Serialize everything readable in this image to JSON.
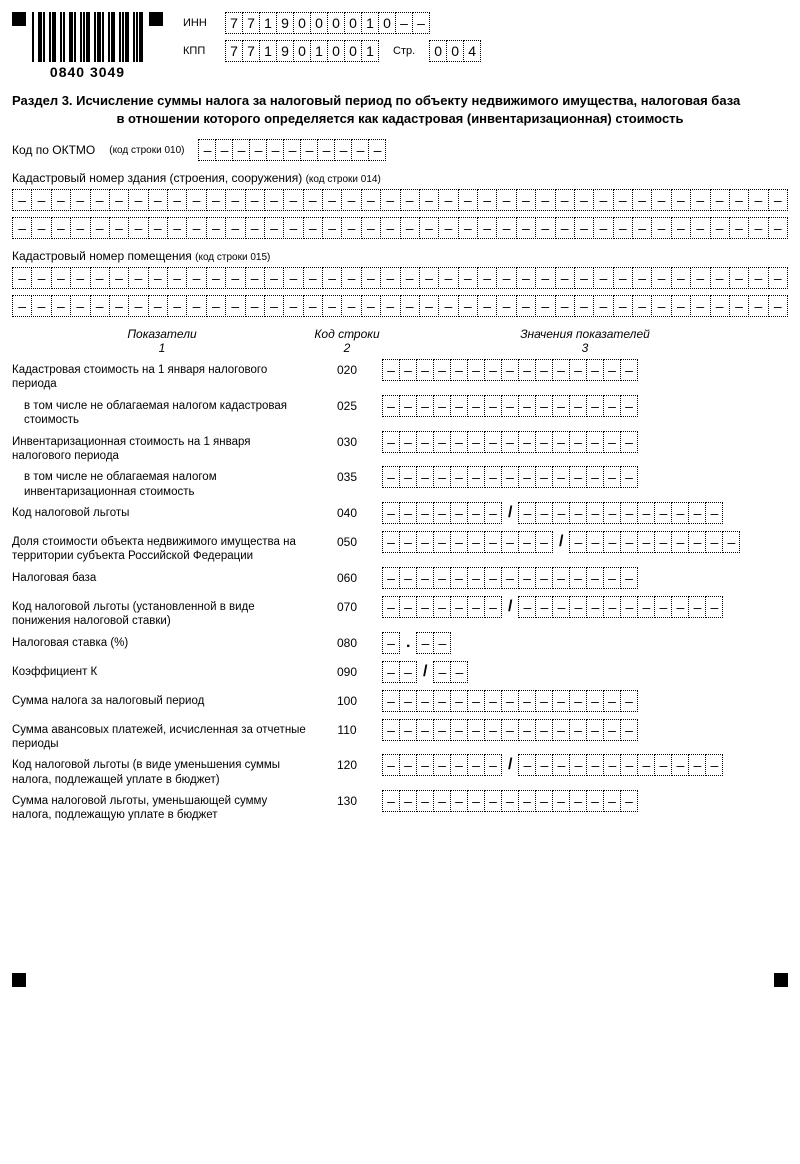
{
  "barcode": "0840 3049",
  "header": {
    "inn_label": "ИНН",
    "inn": [
      "7",
      "7",
      "1",
      "9",
      "0",
      "0",
      "0",
      "0",
      "1",
      "0",
      "–",
      "–"
    ],
    "kpp_label": "КПП",
    "kpp": [
      "7",
      "7",
      "1",
      "9",
      "0",
      "1",
      "0",
      "0",
      "1"
    ],
    "page_label": "Стр.",
    "page": [
      "0",
      "0",
      "4"
    ]
  },
  "section_title_1": "Раздел 3. Исчисление суммы налога за налоговый период по объекту недвижимого имущества, налоговая база",
  "section_title_2": "в отношении которого определяется как кадастровая (инвентаризационная) стоимость",
  "oktmo": {
    "label": "Код по ОКТМО",
    "hint": "(код строки 010)",
    "count": 11
  },
  "line014": {
    "label": "Кадастровый номер здания (строения, сооружения)",
    "hint": "(код строки 014)"
  },
  "line015": {
    "label": "Кадастровый номер помещения",
    "hint": "(код строки 015)"
  },
  "headers": {
    "ind": "Показатели",
    "code": "Код строки",
    "val": "Значения показателей",
    "n1": "1",
    "n2": "2",
    "n3": "3"
  },
  "rows": [
    {
      "ind": "Кадастровая стоимость на 1 января налогового периода",
      "code": "020",
      "cells": 15
    },
    {
      "ind": "в том числе не облагаемая налогом кадастровая стоимость",
      "code": "025",
      "cells": 15,
      "indent": true
    },
    {
      "ind": "Инвентаризационная стоимость на 1 января налогового периода",
      "code": "030",
      "cells": 15
    },
    {
      "ind": "в том числе не облагаемая налогом инвентаризационная стоимость",
      "code": "035",
      "cells": 15,
      "indent": true
    },
    {
      "ind": "Код налоговой льготы",
      "code": "040",
      "split": [
        7,
        12
      ]
    },
    {
      "ind": "Доля стоимости объекта недвижимого имущества на территории субъекта Российской Федерации",
      "code": "050",
      "split": [
        10,
        10
      ]
    },
    {
      "ind": "Налоговая база",
      "code": "060",
      "cells": 15
    },
    {
      "ind": "Код налоговой льготы (установленной в виде понижения налоговой ставки)",
      "code": "070",
      "split": [
        7,
        12
      ]
    },
    {
      "ind": "Налоговая ставка (%)",
      "code": "080",
      "dot": [
        1,
        2
      ]
    },
    {
      "ind": "Коэффициент К",
      "code": "090",
      "split_slash_small": [
        2,
        2
      ]
    },
    {
      "ind": "Сумма налога за налоговый период",
      "code": "100",
      "cells": 15
    },
    {
      "ind": "Сумма авансовых платежей, исчисленная за отчетные периоды",
      "code": "110",
      "cells": 15
    },
    {
      "ind": "Код налоговой льготы (в виде уменьшения суммы налога, подлежащей уплате в бюджет)",
      "code": "120",
      "split": [
        7,
        12
      ]
    },
    {
      "ind": "Сумма налоговой льготы, уменьшающей сумму налога, подлежащую уплате в бюджет",
      "code": "130",
      "cells": 15
    }
  ]
}
